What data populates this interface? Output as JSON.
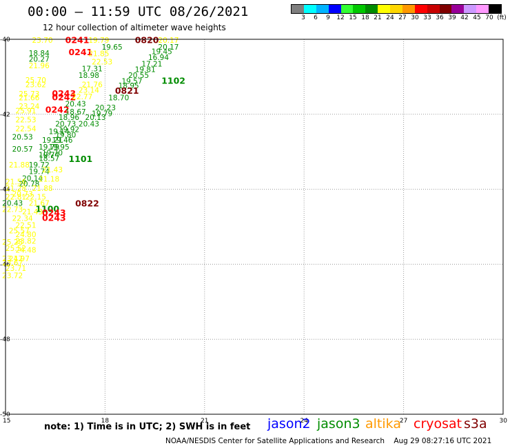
{
  "title": "00:00 – 11:59 UTC 08/26/2021",
  "subtitle": "12 hour collection of altimeter wave heights",
  "legend": {
    "labels": [
      "3",
      "6",
      "9",
      "12",
      "15",
      "18",
      "21",
      "24",
      "27",
      "30",
      "33",
      "36",
      "39",
      "42",
      "45",
      "70",
      "(ft)"
    ],
    "colors": [
      "#7f7f7f",
      "#00ffff",
      "#00b4ff",
      "#0000ff",
      "#33ff33",
      "#00c800",
      "#008c00",
      "#ffff00",
      "#ffd700",
      "#ff9900",
      "#ff0000",
      "#c80000",
      "#800000",
      "#990099",
      "#cc99ff",
      "#ff99ff",
      "#000000"
    ]
  },
  "chart_data": {
    "type": "scatter",
    "xlim": [
      15,
      30
    ],
    "ylim": [
      -50,
      -40
    ],
    "x_ticks": [
      "15",
      "18",
      "21",
      "24",
      "27",
      "30"
    ],
    "y_ticks": [
      "-40",
      "-42",
      "-44",
      "-46",
      "-48",
      "-50"
    ],
    "grid": true,
    "labels": [
      {
        "x": 15.8,
        "y": -40.02,
        "text": "23.70",
        "color": "#ffff00"
      },
      {
        "x": 17.5,
        "y": -40.02,
        "text": "19.79",
        "color": "#ffff00"
      },
      {
        "x": 19.6,
        "y": -40.02,
        "text": "20.17",
        "color": "#ffff00"
      },
      {
        "x": 16.8,
        "y": -40.03,
        "text": "0241",
        "color": "#ff0000",
        "bold": true
      },
      {
        "x": 18.9,
        "y": -40.03,
        "text": "0820",
        "color": "#800000",
        "bold": true
      },
      {
        "x": 17.9,
        "y": -40.2,
        "text": "19.65",
        "color": "#008c00"
      },
      {
        "x": 19.6,
        "y": -40.2,
        "text": "20.17",
        "color": "#008c00"
      },
      {
        "x": 16.9,
        "y": -40.35,
        "text": "0241",
        "color": "#ff0000",
        "bold": true
      },
      {
        "x": 19.4,
        "y": -40.32,
        "text": "19.45",
        "color": "#008c00"
      },
      {
        "x": 15.7,
        "y": -40.37,
        "text": "18.84",
        "color": "#008c00"
      },
      {
        "x": 17.5,
        "y": -40.38,
        "text": "21.85",
        "color": "#ffff00"
      },
      {
        "x": 19.3,
        "y": -40.48,
        "text": "16.94",
        "color": "#008c00"
      },
      {
        "x": 15.7,
        "y": -40.52,
        "text": "20.27",
        "color": "#008c00"
      },
      {
        "x": 17.6,
        "y": -40.6,
        "text": "22.53",
        "color": "#ffff00"
      },
      {
        "x": 19.1,
        "y": -40.65,
        "text": "17.21",
        "color": "#008c00"
      },
      {
        "x": 15.7,
        "y": -40.7,
        "text": "21.96",
        "color": "#ffff00"
      },
      {
        "x": 17.3,
        "y": -40.78,
        "text": "17.31",
        "color": "#008c00"
      },
      {
        "x": 18.9,
        "y": -40.8,
        "text": "19.81",
        "color": "#008c00"
      },
      {
        "x": 17.2,
        "y": -40.96,
        "text": "18.98",
        "color": "#008c00"
      },
      {
        "x": 18.7,
        "y": -40.96,
        "text": "20.55",
        "color": "#008c00"
      },
      {
        "x": 15.6,
        "y": -41.08,
        "text": "25.70",
        "color": "#ffff00"
      },
      {
        "x": 18.5,
        "y": -41.11,
        "text": "19.57",
        "color": "#008c00"
      },
      {
        "x": 19.7,
        "y": -41.11,
        "text": "1102",
        "color": "#008c00",
        "bold": true
      },
      {
        "x": 15.6,
        "y": -41.2,
        "text": "23.62",
        "color": "#ffff00"
      },
      {
        "x": 17.3,
        "y": -41.2,
        "text": "21.76",
        "color": "#ffff00"
      },
      {
        "x": 18.4,
        "y": -41.23,
        "text": "18.95",
        "color": "#008c00"
      },
      {
        "x": 17.2,
        "y": -41.35,
        "text": "23.14",
        "color": "#ffff00"
      },
      {
        "x": 18.3,
        "y": -41.38,
        "text": "0821",
        "color": "#800000",
        "bold": true
      },
      {
        "x": 15.4,
        "y": -41.45,
        "text": "25.73",
        "color": "#ffff00"
      },
      {
        "x": 16.4,
        "y": -41.45,
        "text": "0243",
        "color": "#ff0000",
        "bold": true
      },
      {
        "x": 15.4,
        "y": -41.55,
        "text": "21.66",
        "color": "#ffff00"
      },
      {
        "x": 16.4,
        "y": -41.55,
        "text": "0242",
        "color": "#ff0000",
        "bold": true
      },
      {
        "x": 17.0,
        "y": -41.53,
        "text": "22.77",
        "color": "#ffff00"
      },
      {
        "x": 18.1,
        "y": -41.55,
        "text": "18.70",
        "color": "#008c00"
      },
      {
        "x": 16.8,
        "y": -41.72,
        "text": "20.43",
        "color": "#008c00"
      },
      {
        "x": 15.4,
        "y": -41.78,
        "text": "23.24",
        "color": "#ffff00"
      },
      {
        "x": 17.7,
        "y": -41.82,
        "text": "20.23",
        "color": "#008c00"
      },
      {
        "x": 15.3,
        "y": -41.9,
        "text": "25.91",
        "color": "#ffff00"
      },
      {
        "x": 16.2,
        "y": -41.88,
        "text": "0242",
        "color": "#ff0000",
        "bold": true
      },
      {
        "x": 16.8,
        "y": -41.93,
        "text": "18.67",
        "color": "#008c00"
      },
      {
        "x": 17.6,
        "y": -41.98,
        "text": "19.79",
        "color": "#008c00"
      },
      {
        "x": 16.6,
        "y": -42.08,
        "text": "18.96",
        "color": "#008c00"
      },
      {
        "x": 17.4,
        "y": -42.08,
        "text": "20.13",
        "color": "#008c00"
      },
      {
        "x": 15.3,
        "y": -42.14,
        "text": "22.53",
        "color": "#ffff00"
      },
      {
        "x": 16.5,
        "y": -42.25,
        "text": "20.73",
        "color": "#008c00"
      },
      {
        "x": 17.2,
        "y": -42.25,
        "text": "20.43",
        "color": "#008c00"
      },
      {
        "x": 15.3,
        "y": -42.38,
        "text": "22.54",
        "color": "#ffff00"
      },
      {
        "x": 16.6,
        "y": -42.4,
        "text": "19.92",
        "color": "#008c00"
      },
      {
        "x": 16.3,
        "y": -42.45,
        "text": "19.14",
        "color": "#008c00"
      },
      {
        "x": 15.2,
        "y": -42.6,
        "text": "20.53",
        "color": "#008c00"
      },
      {
        "x": 16.5,
        "y": -42.55,
        "text": "19.80",
        "color": "#008c00"
      },
      {
        "x": 16.4,
        "y": -42.68,
        "text": "19.46",
        "color": "#008c00"
      },
      {
        "x": 16.1,
        "y": -42.68,
        "text": "19.21",
        "color": "#008c00"
      },
      {
        "x": 16.0,
        "y": -42.87,
        "text": "19.79",
        "color": "#008c00"
      },
      {
        "x": 16.3,
        "y": -42.87,
        "text": "19.95",
        "color": "#008c00"
      },
      {
        "x": 15.2,
        "y": -42.92,
        "text": "20.57",
        "color": "#008c00"
      },
      {
        "x": 16.1,
        "y": -43.02,
        "text": "19.70",
        "color": "#008c00"
      },
      {
        "x": 16.0,
        "y": -43.08,
        "text": "19.74",
        "color": "#008c00"
      },
      {
        "x": 16.0,
        "y": -43.17,
        "text": "18.57",
        "color": "#008c00"
      },
      {
        "x": 16.9,
        "y": -43.2,
        "text": "1101",
        "color": "#008c00",
        "bold": true
      },
      {
        "x": 15.1,
        "y": -43.35,
        "text": "21.88",
        "color": "#ffff00"
      },
      {
        "x": 15.7,
        "y": -43.35,
        "text": "19.72",
        "color": "#008c00"
      },
      {
        "x": 15.7,
        "y": -43.52,
        "text": "19.74",
        "color": "#008c00"
      },
      {
        "x": 16.1,
        "y": -43.47,
        "text": "21.43",
        "color": "#ffff00"
      },
      {
        "x": 15.5,
        "y": -43.7,
        "text": "20.14",
        "color": "#008c00"
      },
      {
        "x": 15.0,
        "y": -43.8,
        "text": "21.56",
        "color": "#ffff00"
      },
      {
        "x": 16.0,
        "y": -43.72,
        "text": "21.18",
        "color": "#ffff00"
      },
      {
        "x": 15.4,
        "y": -43.85,
        "text": "20.78",
        "color": "#008c00"
      },
      {
        "x": 15.0,
        "y": -43.97,
        "text": "21.28",
        "color": "#ffff00"
      },
      {
        "x": 15.8,
        "y": -43.97,
        "text": "21.88",
        "color": "#ffff00"
      },
      {
        "x": 15.2,
        "y": -44.12,
        "text": "20.73",
        "color": "#ffff00"
      },
      {
        "x": 15.0,
        "y": -44.2,
        "text": "22.81",
        "color": "#ffff00"
      },
      {
        "x": 15.6,
        "y": -44.2,
        "text": "22.15",
        "color": "#ffff00"
      },
      {
        "x": 14.9,
        "y": -44.37,
        "text": "20.43",
        "color": "#008c00"
      },
      {
        "x": 15.7,
        "y": -44.37,
        "text": "21.67",
        "color": "#ffff00"
      },
      {
        "x": 17.1,
        "y": -44.38,
        "text": "0822",
        "color": "#800000",
        "bold": true
      },
      {
        "x": 14.9,
        "y": -44.53,
        "text": "22.73",
        "color": "#ffff00"
      },
      {
        "x": 15.9,
        "y": -44.53,
        "text": "1100",
        "color": "#008c00",
        "bold": true
      },
      {
        "x": 15.5,
        "y": -44.6,
        "text": "21.43",
        "color": "#ffff00"
      },
      {
        "x": 16.1,
        "y": -44.63,
        "text": "0243",
        "color": "#ff0000",
        "bold": true
      },
      {
        "x": 16.1,
        "y": -44.77,
        "text": "0243",
        "color": "#ff0000",
        "bold": true
      },
      {
        "x": 15.2,
        "y": -44.77,
        "text": "22.34",
        "color": "#ffff00"
      },
      {
        "x": 15.3,
        "y": -44.95,
        "text": "22.51",
        "color": "#ffff00"
      },
      {
        "x": 15.1,
        "y": -45.1,
        "text": "25.57",
        "color": "#ffff00"
      },
      {
        "x": 15.3,
        "y": -45.2,
        "text": "24.80",
        "color": "#ffff00"
      },
      {
        "x": 14.9,
        "y": -45.4,
        "text": "25.28",
        "color": "#ffff00"
      },
      {
        "x": 15.3,
        "y": -45.38,
        "text": "23.82",
        "color": "#ffff00"
      },
      {
        "x": 15.0,
        "y": -45.57,
        "text": "25.52",
        "color": "#ffff00"
      },
      {
        "x": 15.3,
        "y": -45.62,
        "text": "24.48",
        "color": "#ffff00"
      },
      {
        "x": 15.1,
        "y": -45.85,
        "text": "24.97",
        "color": "#ffff00"
      },
      {
        "x": 14.9,
        "y": -45.85,
        "text": "23.17",
        "color": "#ffff00"
      },
      {
        "x": 14.9,
        "y": -45.96,
        "text": "23.67",
        "color": "#ffff00"
      },
      {
        "x": 15.0,
        "y": -46.1,
        "text": "23.71",
        "color": "#ffff00"
      },
      {
        "x": 14.9,
        "y": -46.3,
        "text": "23.72",
        "color": "#ffff00"
      }
    ]
  },
  "satellites": [
    {
      "name": "jason2",
      "color": "#0000ff"
    },
    {
      "name": "jason3",
      "color": "#008c00"
    },
    {
      "name": "altika",
      "color": "#ff9900"
    },
    {
      "name": "cryosat",
      "color": "#ff0000"
    },
    {
      "name": "s3a",
      "color": "#800000"
    }
  ],
  "footer": {
    "note": "note: 1) Time is in UTC; 2) SWH is in feet",
    "credit": "NOAA/NESDIS Center for Satellite Applications and Research    Aug 29 08:27:16 UTC 2021"
  }
}
